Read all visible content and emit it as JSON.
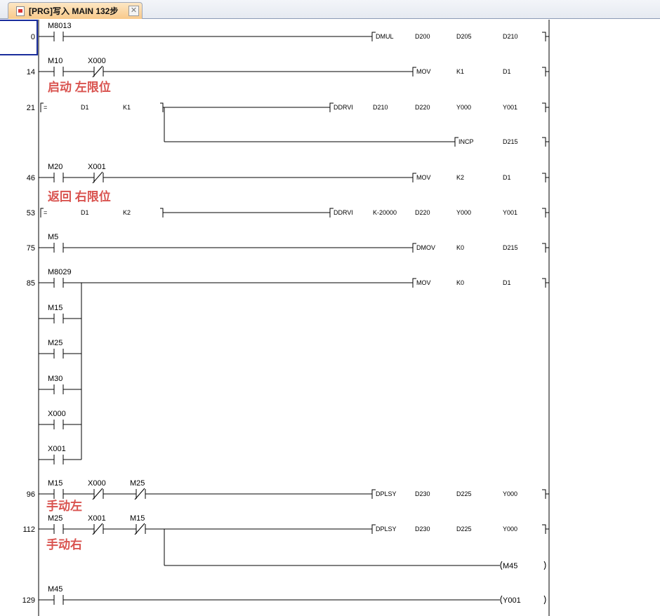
{
  "tab": {
    "title": "[PRG]写入 MAIN 132步",
    "icon": "ladder-program-icon",
    "close_icon": "close-icon"
  },
  "colors": {
    "comment": "#d9534f",
    "cursor": "#1a2d9c",
    "tab": "#f8c98a"
  },
  "rungs": [
    {
      "step": "0",
      "contacts": [
        {
          "name": "M8013",
          "type": "no"
        }
      ],
      "output": {
        "kind": "inst",
        "op": "DMUL",
        "args": [
          "D200",
          "D205",
          "D210"
        ]
      }
    },
    {
      "step": "14",
      "contacts": [
        {
          "name": "M10",
          "type": "no"
        },
        {
          "name": "X000",
          "type": "nc"
        }
      ],
      "output": {
        "kind": "inst",
        "op": "MOV",
        "args": [
          "K1",
          "D1"
        ]
      },
      "comment": "启动 左限位"
    },
    {
      "step": "21",
      "compare": {
        "op": "=",
        "a": "D1",
        "b": "K1"
      },
      "output": {
        "kind": "inst",
        "op": "DDRVI",
        "args": [
          "D210",
          "D220",
          "Y000",
          "Y001"
        ]
      },
      "branch": {
        "kind": "inst",
        "op": "INCP",
        "args": [
          "D215"
        ]
      }
    },
    {
      "step": "46",
      "contacts": [
        {
          "name": "M20",
          "type": "no"
        },
        {
          "name": "X001",
          "type": "nc"
        }
      ],
      "output": {
        "kind": "inst",
        "op": "MOV",
        "args": [
          "K2",
          "D1"
        ]
      },
      "comment": "返回 右限位"
    },
    {
      "step": "53",
      "compare": {
        "op": "=",
        "a": "D1",
        "b": "K2"
      },
      "output": {
        "kind": "inst",
        "op": "DDRVI",
        "args": [
          "K-20000",
          "D220",
          "Y000",
          "Y001"
        ]
      }
    },
    {
      "step": "75",
      "contacts": [
        {
          "name": "M5",
          "type": "no"
        }
      ],
      "output": {
        "kind": "inst",
        "op": "DMOV",
        "args": [
          "K0",
          "D215"
        ]
      }
    },
    {
      "step": "85",
      "contacts": [
        {
          "name": "M8029",
          "type": "no"
        }
      ],
      "output": {
        "kind": "inst",
        "op": "MOV",
        "args": [
          "K0",
          "D1"
        ]
      },
      "or_contacts": [
        "M15",
        "M25",
        "M30",
        "X000",
        "X001"
      ]
    },
    {
      "step": "96",
      "contacts": [
        {
          "name": "M15",
          "type": "no"
        },
        {
          "name": "X000",
          "type": "nc"
        },
        {
          "name": "M25",
          "type": "nc"
        }
      ],
      "output": {
        "kind": "inst",
        "op": "DPLSY",
        "args": [
          "D230",
          "D225",
          "Y000"
        ]
      },
      "comment": "手动左"
    },
    {
      "step": "112",
      "contacts": [
        {
          "name": "M25",
          "type": "no"
        },
        {
          "name": "X001",
          "type": "nc"
        },
        {
          "name": "M15",
          "type": "nc"
        }
      ],
      "output": {
        "kind": "inst",
        "op": "DPLSY",
        "args": [
          "D230",
          "D225",
          "Y000"
        ]
      },
      "branch": {
        "kind": "coil",
        "name": "M45"
      },
      "comment": "手动右"
    },
    {
      "step": "129",
      "contacts": [
        {
          "name": "M45",
          "type": "no"
        }
      ],
      "output": {
        "kind": "coil",
        "name": "Y001"
      }
    }
  ]
}
